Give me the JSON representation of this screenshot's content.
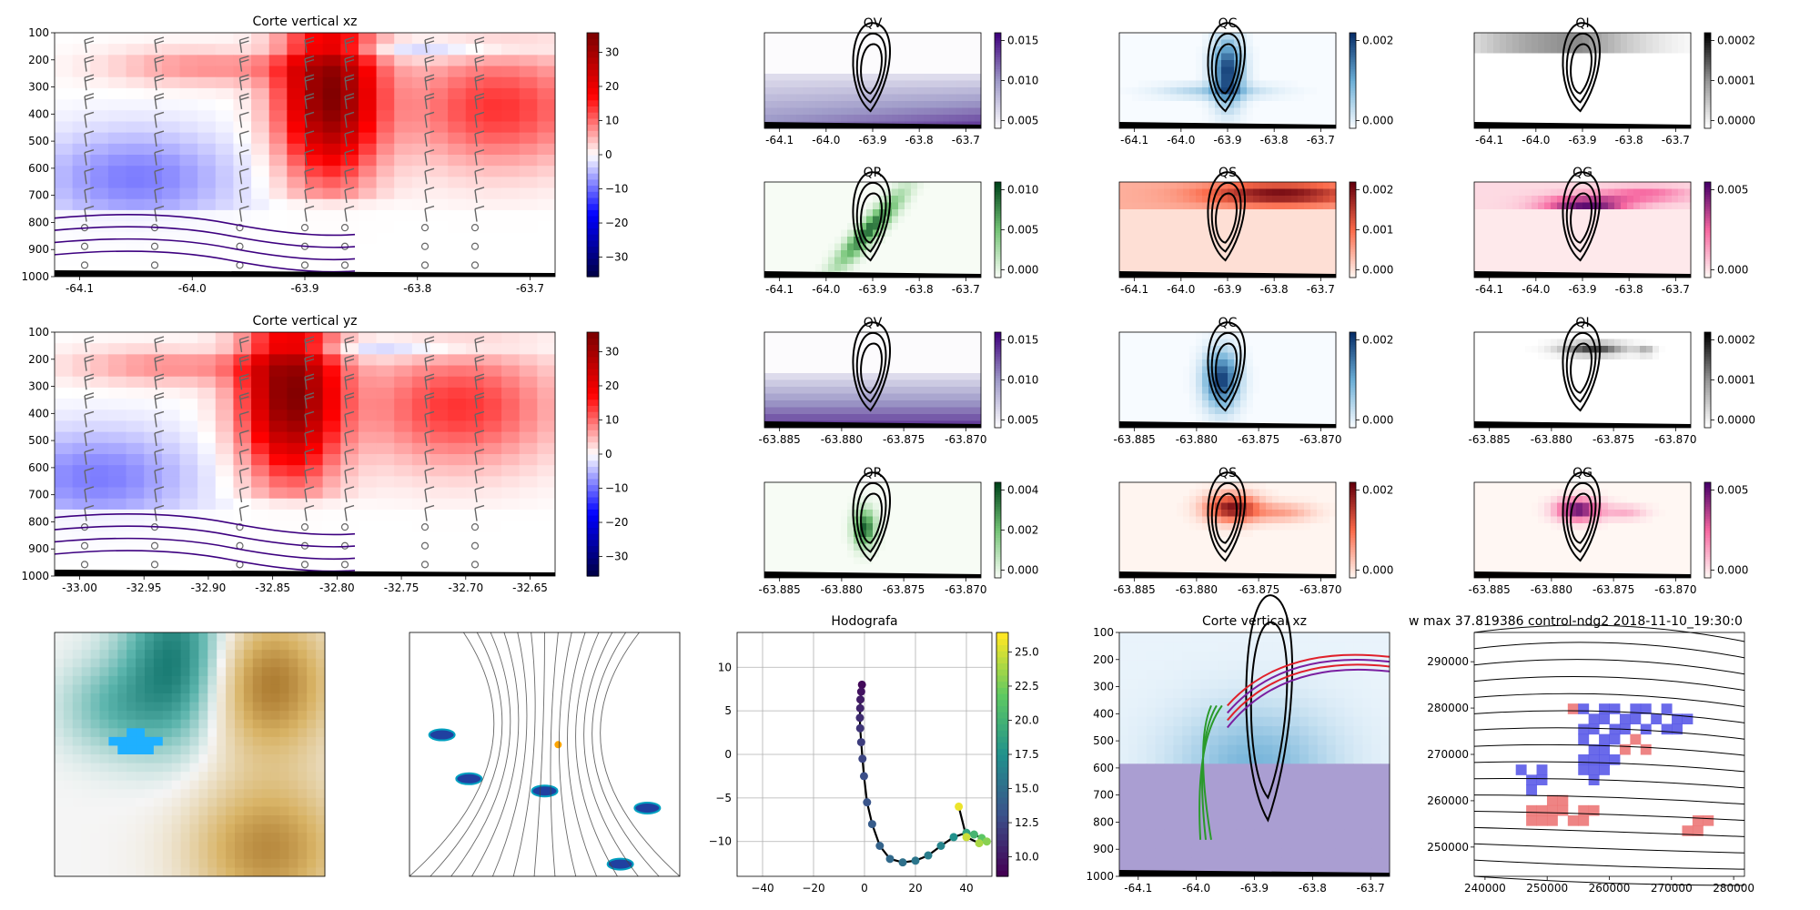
{
  "figure": {
    "bg": "#ffffff"
  },
  "chart_data": [
    {
      "id": "xz",
      "type": "heatmap",
      "title": "Corte vertical xz",
      "x_ticks": [
        "-64.1",
        "-64.0",
        "-63.9",
        "-63.8",
        "-63.7"
      ],
      "y_ticks": [
        "100",
        "200",
        "300",
        "400",
        "500",
        "600",
        "700",
        "800",
        "900",
        "1000"
      ],
      "cbar_ticks": [
        "30",
        "20",
        "10",
        "0",
        "−10",
        "−20",
        "−30"
      ],
      "clim": [
        -35,
        35
      ],
      "cmap": "seismic"
    },
    {
      "id": "yz",
      "type": "heatmap",
      "title": "Corte vertical yz",
      "x_ticks": [
        "-33.00",
        "-32.95",
        "-32.90",
        "-32.85",
        "-32.80",
        "-32.75",
        "-32.70",
        "-32.65"
      ],
      "y_ticks": [
        "100",
        "200",
        "300",
        "400",
        "500",
        "600",
        "700",
        "800",
        "900",
        "1000"
      ],
      "cbar_ticks": [
        "30",
        "20",
        "10",
        "0",
        "−10",
        "−20",
        "−30"
      ],
      "clim": [
        -35,
        35
      ],
      "cmap": "seismic"
    },
    {
      "id": "qv1",
      "type": "heatmap",
      "title": "QV",
      "x_ticks": [
        "-64.1",
        "-64.0",
        "-63.9",
        "-63.8",
        "-63.7"
      ],
      "cbar_ticks": [
        "0.015",
        "0.010",
        "0.005"
      ],
      "cmap": "Purples"
    },
    {
      "id": "qc1",
      "type": "heatmap",
      "title": "QC",
      "x_ticks": [
        "-64.1",
        "-64.0",
        "-63.9",
        "-63.8",
        "-63.7"
      ],
      "cbar_ticks": [
        "0.002",
        "0.000"
      ],
      "cmap": "Blues"
    },
    {
      "id": "qi1",
      "type": "heatmap",
      "title": "QI",
      "x_ticks": [
        "-64.1",
        "-64.0",
        "-63.9",
        "-63.8",
        "-63.7"
      ],
      "cbar_ticks": [
        "0.0002",
        "0.0001",
        "0.0000"
      ],
      "cmap": "Greys"
    },
    {
      "id": "qr1",
      "type": "heatmap",
      "title": "QR",
      "x_ticks": [
        "-64.1",
        "-64.0",
        "-63.9",
        "-63.8",
        "-63.7"
      ],
      "cbar_ticks": [
        "0.010",
        "0.005",
        "0.000"
      ],
      "cmap": "Greens"
    },
    {
      "id": "qs1",
      "type": "heatmap",
      "title": "QS",
      "x_ticks": [
        "-64.1",
        "-64.0",
        "-63.9",
        "-63.8",
        "-63.7"
      ],
      "cbar_ticks": [
        "0.002",
        "0.001",
        "0.000"
      ],
      "cmap": "Reds"
    },
    {
      "id": "qg1",
      "type": "heatmap",
      "title": "QG",
      "x_ticks": [
        "-64.1",
        "-64.0",
        "-63.9",
        "-63.8",
        "-63.7"
      ],
      "cbar_ticks": [
        "0.005",
        "0.000"
      ],
      "cmap": "RdPu"
    },
    {
      "id": "qv2",
      "type": "heatmap",
      "title": "QV",
      "x_ticks": [
        "-63.885",
        "-63.880",
        "-63.875",
        "-63.870"
      ],
      "cbar_ticks": [
        "0.015",
        "0.010",
        "0.005"
      ],
      "cmap": "Purples"
    },
    {
      "id": "qc2",
      "type": "heatmap",
      "title": "QC",
      "x_ticks": [
        "-63.885",
        "-63.880",
        "-63.875",
        "-63.870"
      ],
      "cbar_ticks": [
        "0.002",
        "0.000"
      ],
      "cmap": "Blues"
    },
    {
      "id": "qi2",
      "type": "heatmap",
      "title": "QI",
      "x_ticks": [
        "-63.885",
        "-63.880",
        "-63.875",
        "-63.870"
      ],
      "cbar_ticks": [
        "0.0002",
        "0.0001",
        "0.0000"
      ],
      "cmap": "Greys"
    },
    {
      "id": "qr2",
      "type": "heatmap",
      "title": "QR",
      "x_ticks": [
        "-63.885",
        "-63.880",
        "-63.875",
        "-63.870"
      ],
      "cbar_ticks": [
        "0.004",
        "0.002",
        "0.000"
      ],
      "cmap": "Greens"
    },
    {
      "id": "qs2",
      "type": "heatmap",
      "title": "QS",
      "x_ticks": [
        "-63.885",
        "-63.880",
        "-63.875",
        "-63.870"
      ],
      "cbar_ticks": [
        "0.002",
        "0.000"
      ],
      "cmap": "Reds"
    },
    {
      "id": "qg2",
      "type": "heatmap",
      "title": "QG",
      "x_ticks": [
        "-63.885",
        "-63.880",
        "-63.875",
        "-63.870"
      ],
      "cbar_ticks": [
        "0.005",
        "0.000"
      ],
      "cmap": "RdPu"
    },
    {
      "id": "hodo",
      "type": "line",
      "title": "Hodografa",
      "x_ticks": [
        "−40",
        "−20",
        "0",
        "20",
        "40"
      ],
      "y_ticks": [
        "10",
        "5",
        "0",
        "−5",
        "−10"
      ],
      "xlim": [
        -50,
        50
      ],
      "ylim": [
        -14,
        14
      ],
      "grid": true,
      "cbar_ticks": [
        "25.0",
        "22.5",
        "20.0",
        "17.5",
        "15.0",
        "12.5",
        "10.0"
      ],
      "clim": [
        8.5,
        27.5
      ],
      "cmap": "viridis",
      "u": [
        -1,
        -1.3,
        -1.6,
        -1.7,
        -1.8,
        -1.7,
        -1.3,
        -0.8,
        -0.2,
        1,
        3,
        6,
        10,
        15,
        20,
        25,
        30,
        35,
        40,
        43,
        46,
        48,
        45,
        40,
        37
      ],
      "v": [
        8,
        7.2,
        6.3,
        5.3,
        4.2,
        3,
        1.4,
        -0.5,
        -2.5,
        -5.5,
        -8,
        -10.5,
        -12,
        -12.4,
        -12.2,
        -11.6,
        -10.5,
        -9.5,
        -9,
        -9.2,
        -9.6,
        -10,
        -10.2,
        -9.5,
        -6
      ],
      "c": [
        9,
        9.5,
        10,
        10.5,
        11,
        11.5,
        12,
        12.5,
        13,
        13.5,
        14,
        14.5,
        15,
        15.5,
        16,
        16.5,
        17,
        18,
        19.5,
        21,
        22.5,
        24,
        25,
        26,
        27
      ]
    },
    {
      "id": "xz3",
      "type": "heatmap",
      "title": "Corte vertical xz",
      "x_ticks": [
        "-64.1",
        "-64.0",
        "-63.9",
        "-63.8",
        "-63.7"
      ],
      "y_ticks": [
        "100",
        "200",
        "300",
        "400",
        "500",
        "600",
        "700",
        "800",
        "900",
        "1000"
      ]
    },
    {
      "id": "wmax",
      "type": "heatmap",
      "title": "w max 37.819386 control-ndg2 2018-11-10_19:30:0",
      "x_ticks": [
        "240000",
        "250000",
        "260000",
        "270000",
        "280000"
      ],
      "y_ticks": [
        "290000",
        "280000",
        "270000",
        "260000",
        "250000"
      ]
    }
  ]
}
